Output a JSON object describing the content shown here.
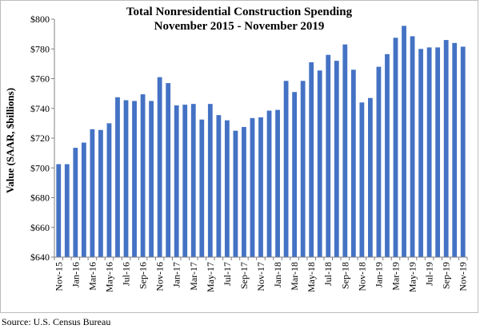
{
  "chart_data": {
    "type": "bar",
    "title": "Total Nonresidential Construction Spending",
    "subtitle": "November 2015 - November 2019",
    "xlabel": "",
    "ylabel": "Value (SAAR, $billions)",
    "ylim": [
      640,
      800
    ],
    "yticks": [
      "$640",
      "$660",
      "$680",
      "$700",
      "$720",
      "$740",
      "$760",
      "$780",
      "$800"
    ],
    "tick_labels": [
      "Nov-15",
      "Jan-16",
      "Mar-16",
      "May-16",
      "Jul-16",
      "Sep-16",
      "Nov-16",
      "Jan-17",
      "Mar-17",
      "May-17",
      "Jul-17",
      "Sep-17",
      "Nov-17",
      "Jan-18",
      "Mar-18",
      "May-18",
      "Jul-18",
      "Sep-18",
      "Nov-18",
      "Jan-19",
      "Mar-19",
      "May-19",
      "Jul-19",
      "Sep-19",
      "Nov-19"
    ],
    "categories": [
      "Nov-15",
      "Dec-15",
      "Jan-16",
      "Feb-16",
      "Mar-16",
      "Apr-16",
      "May-16",
      "Jun-16",
      "Jul-16",
      "Aug-16",
      "Sep-16",
      "Oct-16",
      "Nov-16",
      "Dec-16",
      "Jan-17",
      "Feb-17",
      "Mar-17",
      "Apr-17",
      "May-17",
      "Jun-17",
      "Jul-17",
      "Aug-17",
      "Sep-17",
      "Oct-17",
      "Nov-17",
      "Dec-17",
      "Jan-18",
      "Feb-18",
      "Mar-18",
      "Apr-18",
      "May-18",
      "Jun-18",
      "Jul-18",
      "Aug-18",
      "Sep-18",
      "Oct-18",
      "Nov-18",
      "Dec-18",
      "Jan-19",
      "Feb-19",
      "Mar-19",
      "Apr-19",
      "May-19",
      "Jun-19",
      "Jul-19",
      "Aug-19",
      "Sep-19",
      "Oct-19",
      "Nov-19"
    ],
    "values": [
      702.5,
      702.5,
      713.5,
      717,
      726,
      725.5,
      730,
      747.5,
      745.5,
      745,
      749.5,
      745,
      761,
      757,
      742,
      742.5,
      743,
      732.5,
      743,
      735.5,
      732,
      725,
      727.5,
      733.5,
      734,
      738.5,
      739,
      758.5,
      751,
      758.5,
      771,
      765.5,
      776,
      772,
      783,
      766,
      744,
      747,
      768,
      776.5,
      787.5,
      795.5,
      788.5,
      780,
      781,
      781,
      786,
      784,
      781.5
    ],
    "grid": false,
    "legend": "none",
    "bar_color": "#4472C4",
    "axis_color": "#808080"
  },
  "source": "Source:  U.S. Census Bureau"
}
